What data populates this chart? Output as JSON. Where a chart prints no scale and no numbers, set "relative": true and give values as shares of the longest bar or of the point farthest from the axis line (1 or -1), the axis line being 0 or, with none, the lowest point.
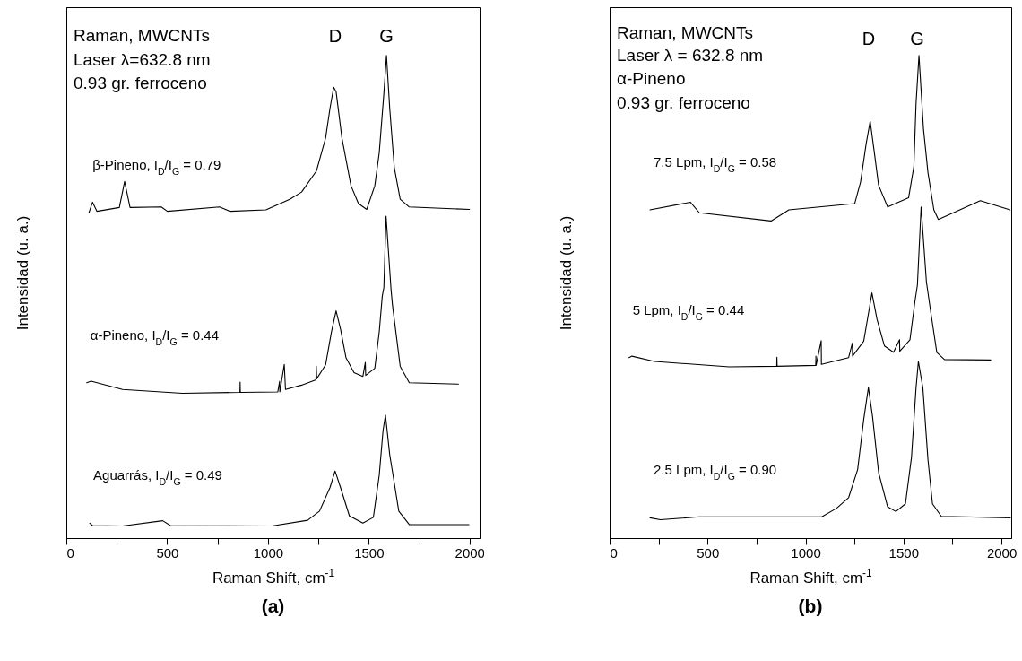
{
  "chart_data": [
    {
      "type": "line",
      "title": "(a)",
      "xlabel": "Raman Shift, cm$^{-1}$",
      "ylabel": "Intensidad  (u. a.)",
      "relative": true,
      "xlim": [
        0,
        2050
      ],
      "xticks": [
        0,
        {
          "value": 250,
          "label": null
        },
        500,
        {
          "value": 750,
          "label": null
        },
        1000,
        {
          "value": 1250,
          "label": null
        },
        1500,
        {
          "value": 1750,
          "label": null
        },
        2000
      ],
      "line_style": "solid",
      "marker": "none",
      "annotations": [
        "Raman, MWCNTs",
        "Laser λ=632.8 nm",
        "0.93 gr. ferroceno",
        "D",
        "G"
      ],
      "series": [
        {
          "name": "β-Pineno, I$_{D}$/I$_{G}$ = 0.79",
          "color": "#000000",
          "x": [
            112,
            130,
            152,
            263,
            289,
            316,
            471,
            501,
            760,
            812,
            990,
            1108,
            1167,
            1241,
            1286,
            1308,
            1326,
            1338,
            1367,
            1412,
            1449,
            1490,
            1530,
            1552,
            1575,
            1588,
            1604,
            1627,
            1656,
            1701,
            2000
          ],
          "values": [
            0.674,
            0.696,
            0.677,
            0.685,
            0.739,
            0.685,
            0.686,
            0.677,
            0.686,
            0.677,
            0.68,
            0.702,
            0.717,
            0.761,
            0.829,
            0.891,
            0.934,
            0.925,
            0.829,
            0.73,
            0.693,
            0.681,
            0.73,
            0.798,
            0.921,
            1.0,
            0.891,
            0.767,
            0.702,
            0.686,
            0.681
          ]
        },
        {
          "name": "α-Pineno, I$_{D}$/I$_{G}$ = 0.44",
          "color": "#000000",
          "x": [
            101,
            123,
            279,
            575,
            861,
            862,
            863,
            1049,
            1058,
            1059,
            1081,
            1087,
            1167,
            1238,
            1240,
            1242,
            1286,
            1315,
            1338,
            1360,
            1387,
            1427,
            1471,
            1483,
            1485,
            1530,
            1552,
            1567,
            1575,
            1586,
            1611,
            1618,
            1656,
            1701,
            1945
          ],
          "values": [
            0.322,
            0.325,
            0.308,
            0.3,
            0.302,
            0.323,
            0.302,
            0.303,
            0.325,
            0.303,
            0.36,
            0.308,
            0.317,
            0.328,
            0.356,
            0.33,
            0.359,
            0.427,
            0.471,
            0.433,
            0.374,
            0.343,
            0.335,
            0.364,
            0.337,
            0.352,
            0.427,
            0.501,
            0.519,
            0.667,
            0.513,
            0.482,
            0.356,
            0.322,
            0.319
          ]
        },
        {
          "name": "Aguarrás, I$_{D}$/I$_{G}$ = 0.49",
          "color": "#000000",
          "x": [
            116,
            130,
            279,
            478,
            516,
            1019,
            1197,
            1256,
            1308,
            1333,
            1360,
            1404,
            1471,
            1523,
            1552,
            1571,
            1583,
            1604,
            1623,
            1649,
            1701,
            1997
          ],
          "values": [
            0.031,
            0.026,
            0.025,
            0.036,
            0.026,
            0.025,
            0.037,
            0.056,
            0.105,
            0.139,
            0.105,
            0.046,
            0.031,
            0.043,
            0.13,
            0.223,
            0.255,
            0.173,
            0.124,
            0.056,
            0.028,
            0.028
          ]
        }
      ]
    },
    {
      "type": "line",
      "title": "(b)",
      "xlabel": "Raman Shift, cm$^{-1}$",
      "ylabel": "Intensidad  (u. a.)",
      "relative": true,
      "xlim": [
        0,
        2050
      ],
      "xticks": [
        0,
        {
          "value": 250,
          "label": null
        },
        500,
        {
          "value": 750,
          "label": null
        },
        1000,
        {
          "value": 1250,
          "label": null
        },
        1500,
        {
          "value": 1750,
          "label": null
        },
        2000
      ],
      "line_style": "solid",
      "marker": "none",
      "annotations": [
        "Raman, MWCNTs",
        "Laser λ = 632.8 nm",
        "α-Pineno",
        "0.93 gr. ferroceno",
        "D",
        "G"
      ],
      "series": [
        {
          "name": "7.5 Lpm, I$_{D}$/I$_{G}$ = 0.58",
          "color": "#000000",
          "x": [
            206,
            412,
            458,
            824,
            915,
            1251,
            1281,
            1309,
            1330,
            1350,
            1373,
            1419,
            1526,
            1553,
            1564,
            1579,
            1602,
            1625,
            1655,
            1678,
            1892,
            2044
          ],
          "values": [
            0.68,
            0.696,
            0.674,
            0.657,
            0.68,
            0.693,
            0.738,
            0.816,
            0.864,
            0.803,
            0.731,
            0.686,
            0.705,
            0.77,
            0.9,
            1.0,
            0.848,
            0.757,
            0.68,
            0.66,
            0.699,
            0.68
          ]
        },
        {
          "name": "5 Lpm, I$_{D}$/I$_{G}$ = 0.44",
          "color": "#000000",
          "x": [
            99,
            114,
            229,
            610,
            853,
            854,
            855,
            1052,
            1053,
            1054,
            1080,
            1081,
            1220,
            1239,
            1240,
            1297,
            1324,
            1339,
            1365,
            1403,
            1449,
            1480,
            1481,
            1533,
            1559,
            1571,
            1590,
            1617,
            1640,
            1670,
            1709,
            1945
          ],
          "values": [
            0.374,
            0.377,
            0.366,
            0.355,
            0.356,
            0.375,
            0.356,
            0.358,
            0.377,
            0.358,
            0.409,
            0.36,
            0.374,
            0.404,
            0.377,
            0.408,
            0.472,
            0.508,
            0.453,
            0.398,
            0.385,
            0.411,
            0.387,
            0.411,
            0.492,
            0.524,
            0.686,
            0.531,
            0.466,
            0.385,
            0.37,
            0.369
          ]
        },
        {
          "name": "2.5 Lpm, I$_{D}$/I$_{G}$ = 0.90",
          "color": "#000000",
          "x": [
            206,
            259,
            458,
            915,
            1083,
            1159,
            1220,
            1266,
            1297,
            1321,
            1342,
            1373,
            1419,
            1461,
            1510,
            1541,
            1564,
            1576,
            1599,
            1625,
            1648,
            1693,
            2045
          ],
          "values": [
            0.042,
            0.038,
            0.044,
            0.044,
            0.044,
            0.062,
            0.084,
            0.142,
            0.246,
            0.312,
            0.252,
            0.136,
            0.065,
            0.055,
            0.071,
            0.168,
            0.311,
            0.366,
            0.311,
            0.162,
            0.071,
            0.045,
            0.042
          ]
        }
      ]
    }
  ]
}
